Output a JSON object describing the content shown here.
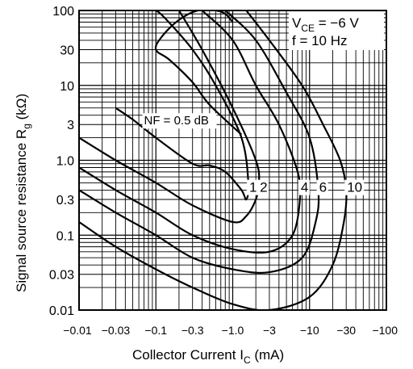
{
  "chart_data": {
    "type": "line",
    "x_scale": "log",
    "y_scale": "log",
    "xlim": [
      -0.01,
      -100
    ],
    "ylim": [
      0.01,
      100
    ],
    "x_ticks": [
      "−0.01",
      "−0.03",
      "−0.1",
      "−0.3",
      "−1.0",
      "−3",
      "−10",
      "−30",
      "−100"
    ],
    "y_ticks": [
      "100",
      "30",
      "10",
      "3",
      "1.0",
      "0.3",
      "0.1",
      "0.03",
      "0.01"
    ],
    "xlabel": {
      "main": "Collector Current  I",
      "sub": "C",
      "unit": "  (mA)"
    },
    "ylabel": {
      "main": "Signal source resistance  R",
      "sub": "g",
      "unit": "  (kΩ)"
    },
    "annotation": {
      "vce_main": "V",
      "vce_sub": "CE",
      "vce_value": " = −6 V",
      "freq": "f = 10 Hz"
    },
    "grid": true,
    "legend": "none",
    "series": [
      {
        "label": "NF = 0.5 dB",
        "x": [
          -1.3,
          -0.5,
          -0.3,
          -0.15,
          -0.1,
          -0.12,
          -0.2,
          -0.35,
          -0.6,
          -0.8,
          -1.0
        ],
        "y": [
          2.2,
          5.5,
          11,
          22,
          30,
          45,
          75,
          100,
          100,
          90,
          70
        ]
      },
      {
        "label": "1",
        "x": [
          -0.03,
          -0.05,
          -0.1,
          -0.3,
          -0.5,
          -0.8,
          -1.3,
          -1.5,
          -1.6,
          -1.3,
          -0.6,
          -0.3,
          -0.13,
          -0.1
        ],
        "y": [
          5.0,
          3.5,
          2.0,
          0.9,
          0.85,
          0.7,
          0.4,
          0.3,
          0.5,
          2.0,
          10,
          30,
          80,
          100
        ]
      },
      {
        "label": "2",
        "x": [
          -0.01,
          -0.03,
          -0.1,
          -0.3,
          -1.0,
          -1.5,
          -2.0,
          -2.2,
          -2.0,
          -1.0,
          -0.4,
          -0.2
        ],
        "y": [
          2.0,
          1.0,
          0.5,
          0.25,
          0.15,
          0.18,
          0.3,
          0.5,
          1.0,
          5.0,
          30,
          100
        ]
      },
      {
        "label": "4",
        "x": [
          -0.01,
          -0.03,
          -0.1,
          -0.3,
          -1.0,
          -3,
          -6,
          -7.5,
          -7.0,
          -4.0,
          -2.0,
          -1.0,
          -0.4
        ],
        "y": [
          0.8,
          0.4,
          0.2,
          0.1,
          0.065,
          0.06,
          0.1,
          0.3,
          0.7,
          3.0,
          10,
          40,
          100
        ]
      },
      {
        "label": "6",
        "x": [
          -0.01,
          -0.03,
          -0.1,
          -0.3,
          -1.0,
          -3,
          -8,
          -12,
          -13,
          -10,
          -5.0,
          -2.0,
          -0.8
        ],
        "y": [
          0.4,
          0.2,
          0.1,
          0.05,
          0.035,
          0.032,
          0.05,
          0.15,
          0.4,
          2.0,
          8.0,
          40,
          100
        ]
      },
      {
        "label": "10",
        "x": [
          -0.01,
          -0.03,
          -0.1,
          -0.3,
          -1.0,
          -3,
          -10,
          -20,
          -28,
          -30,
          -25,
          -15,
          -8.0,
          -3.0,
          -1.5
        ],
        "y": [
          0.15,
          0.07,
          0.035,
          0.02,
          0.012,
          0.01,
          0.015,
          0.04,
          0.15,
          0.4,
          1.0,
          3.0,
          10,
          40,
          100
        ]
      }
    ]
  }
}
